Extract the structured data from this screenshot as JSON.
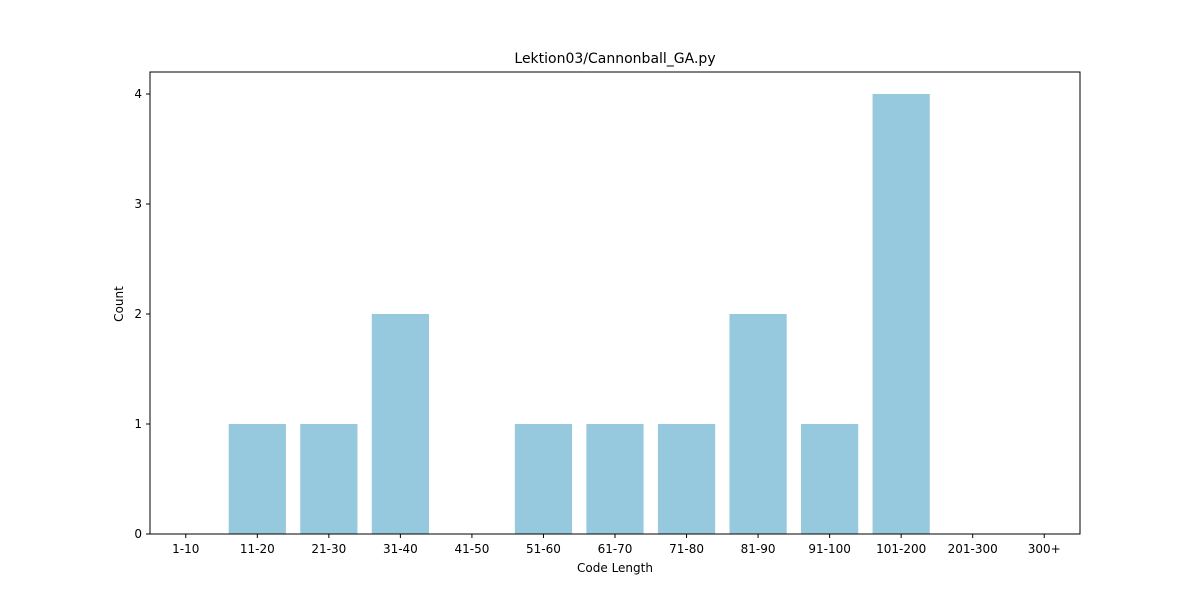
{
  "chart_data": {
    "type": "bar",
    "title": "Lektion03/Cannonball_GA.py",
    "xlabel": "Code Length",
    "ylabel": "Count",
    "categories": [
      "1-10",
      "11-20",
      "21-30",
      "31-40",
      "41-50",
      "51-60",
      "61-70",
      "71-80",
      "81-90",
      "91-100",
      "101-200",
      "201-300",
      "300+"
    ],
    "values": [
      0,
      1,
      1,
      2,
      0,
      1,
      1,
      1,
      2,
      1,
      4,
      0,
      0
    ],
    "ylim": [
      0,
      4.2
    ],
    "yticks": [
      0,
      1,
      2,
      3,
      4
    ],
    "grid": false,
    "legend": "none",
    "colors": {
      "bar": "#96c9dd",
      "axis": "#000000",
      "background": "#ffffff"
    }
  }
}
